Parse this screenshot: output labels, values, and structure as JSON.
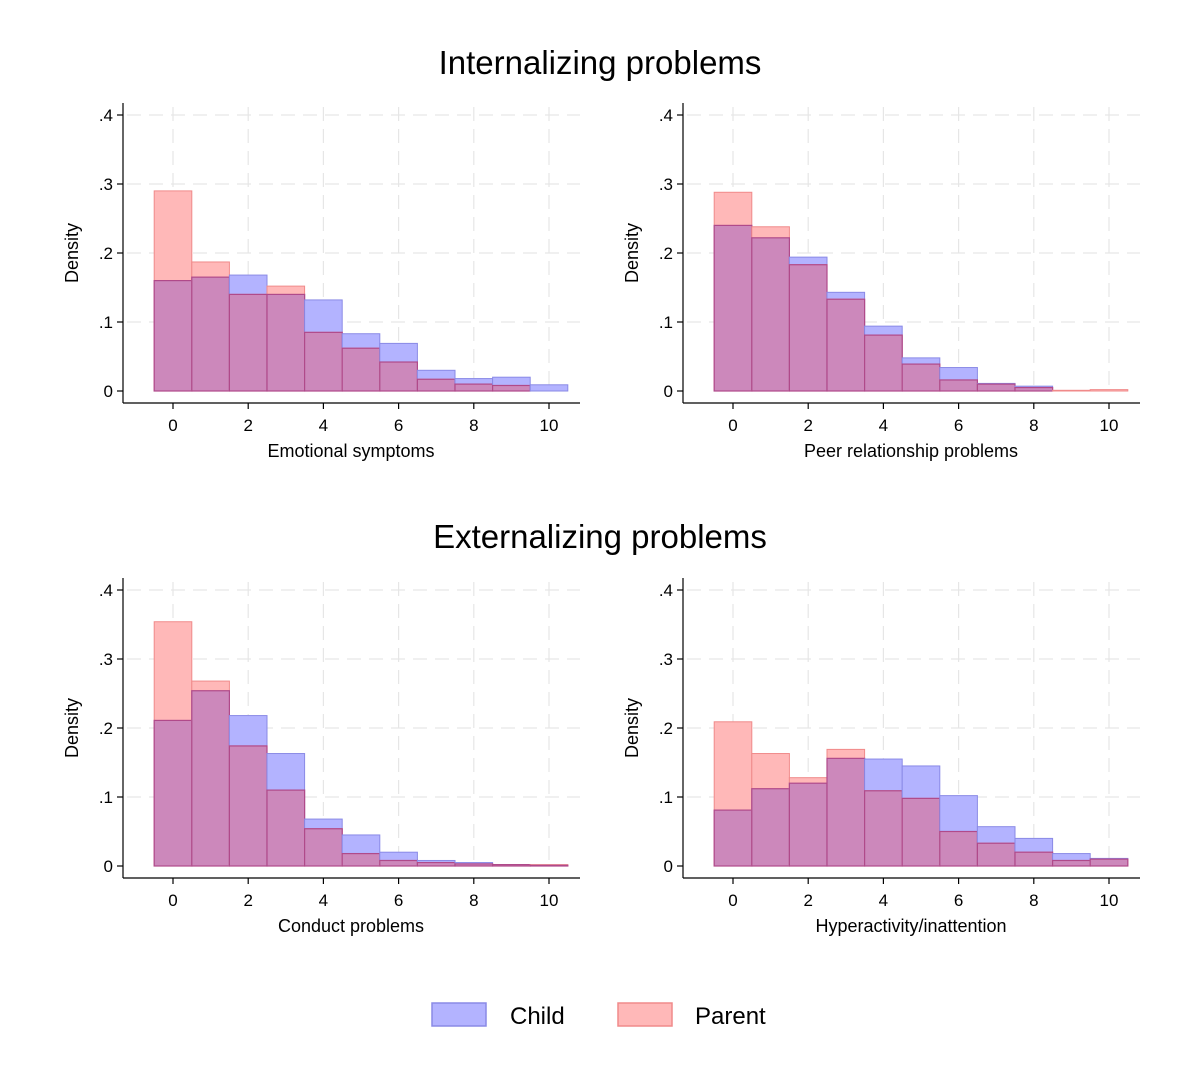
{
  "figure": {
    "sections": [
      {
        "title": "Internalizing problems"
      },
      {
        "title": "Externalizing problems"
      }
    ],
    "legend": [
      {
        "label": "Child",
        "color": "#b3b3ff",
        "stroke": "#8a8ae6"
      },
      {
        "label": "Parent",
        "color": "#ffb8b8",
        "stroke": "#f08a8a"
      }
    ],
    "overlap_color": "#cc88bb"
  },
  "chart_data": [
    {
      "type": "bar",
      "subtype": "overlaid-histogram",
      "xlabel": "Emotional symptoms",
      "ylabel": "Density",
      "x": [
        0,
        1,
        2,
        3,
        4,
        5,
        6,
        7,
        8,
        9,
        10
      ],
      "xticks": [
        "0",
        "2",
        "4",
        "6",
        "8",
        "10"
      ],
      "ylim": [
        0,
        0.4
      ],
      "yticks": [
        "0",
        ".1",
        ".2",
        ".3",
        ".4"
      ],
      "grid": true,
      "series": [
        {
          "name": "Child",
          "values": [
            0.16,
            0.165,
            0.168,
            0.14,
            0.132,
            0.083,
            0.069,
            0.03,
            0.018,
            0.02,
            0.009
          ]
        },
        {
          "name": "Parent",
          "values": [
            0.29,
            0.187,
            0.14,
            0.152,
            0.085,
            0.062,
            0.042,
            0.017,
            0.01,
            0.008,
            0.0
          ]
        }
      ]
    },
    {
      "type": "bar",
      "subtype": "overlaid-histogram",
      "xlabel": "Peer relationship problems",
      "ylabel": "Density",
      "x": [
        0,
        1,
        2,
        3,
        4,
        5,
        6,
        7,
        8,
        9,
        10
      ],
      "xticks": [
        "0",
        "2",
        "4",
        "6",
        "8",
        "10"
      ],
      "ylim": [
        0,
        0.4
      ],
      "yticks": [
        "0",
        ".1",
        ".2",
        ".3",
        ".4"
      ],
      "grid": true,
      "series": [
        {
          "name": "Child",
          "values": [
            0.24,
            0.222,
            0.194,
            0.143,
            0.094,
            0.048,
            0.034,
            0.011,
            0.007,
            0.0,
            0.0
          ]
        },
        {
          "name": "Parent",
          "values": [
            0.288,
            0.238,
            0.183,
            0.133,
            0.081,
            0.039,
            0.016,
            0.01,
            0.005,
            0.001,
            0.002
          ]
        }
      ]
    },
    {
      "type": "bar",
      "subtype": "overlaid-histogram",
      "xlabel": "Conduct problems",
      "ylabel": "Density",
      "x": [
        0,
        1,
        2,
        3,
        4,
        5,
        6,
        7,
        8,
        9,
        10
      ],
      "xticks": [
        "0",
        "2",
        "4",
        "6",
        "8",
        "10"
      ],
      "ylim": [
        0,
        0.4
      ],
      "yticks": [
        "0",
        ".1",
        ".2",
        ".3",
        ".4"
      ],
      "grid": true,
      "series": [
        {
          "name": "Child",
          "values": [
            0.211,
            0.254,
            0.218,
            0.163,
            0.068,
            0.045,
            0.02,
            0.008,
            0.005,
            0.002,
            0.001
          ]
        },
        {
          "name": "Parent",
          "values": [
            0.354,
            0.268,
            0.174,
            0.11,
            0.054,
            0.018,
            0.008,
            0.005,
            0.003,
            0.002,
            0.002
          ]
        }
      ]
    },
    {
      "type": "bar",
      "subtype": "overlaid-histogram",
      "xlabel": "Hyperactivity/inattention",
      "ylabel": "Density",
      "x": [
        0,
        1,
        2,
        3,
        4,
        5,
        6,
        7,
        8,
        9,
        10
      ],
      "xticks": [
        "0",
        "2",
        "4",
        "6",
        "8",
        "10"
      ],
      "ylim": [
        0,
        0.4
      ],
      "yticks": [
        "0",
        ".1",
        ".2",
        ".3",
        ".4"
      ],
      "grid": true,
      "series": [
        {
          "name": "Child",
          "values": [
            0.081,
            0.112,
            0.12,
            0.156,
            0.155,
            0.145,
            0.102,
            0.057,
            0.04,
            0.018,
            0.011
          ]
        },
        {
          "name": "Parent",
          "values": [
            0.209,
            0.163,
            0.128,
            0.169,
            0.109,
            0.098,
            0.05,
            0.033,
            0.02,
            0.008,
            0.01
          ]
        }
      ]
    }
  ]
}
